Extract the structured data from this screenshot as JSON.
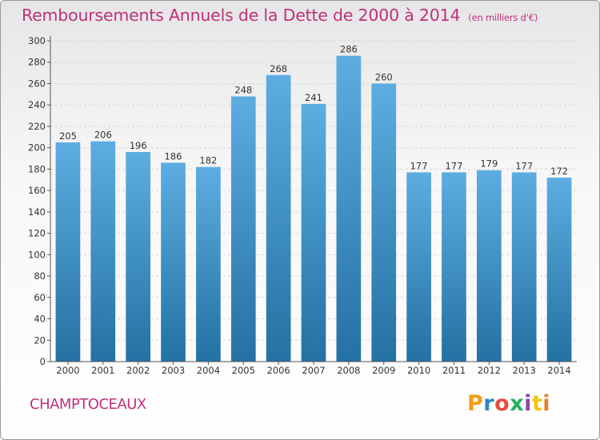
{
  "title": "Remboursements Annuels de la Dette de 2000 à 2014",
  "subtitle": "(en milliers d'€)",
  "commune": "CHAMPTOCEAUX",
  "logo": {
    "text": "Proxiti",
    "colors": [
      "#f39c12",
      "#2e86c1",
      "#e74c3c",
      "#27ae60",
      "#8e44ad",
      "#f1c40f",
      "#e67e22"
    ]
  },
  "colors": {
    "title": "#c0307a",
    "bar_top": "#5dade2",
    "bar_bottom": "#2471a3",
    "grid": "#d5d5d5"
  },
  "chart_data": {
    "type": "bar",
    "categories": [
      "2000",
      "2001",
      "2002",
      "2003",
      "2004",
      "2005",
      "2006",
      "2007",
      "2008",
      "2009",
      "2010",
      "2011",
      "2012",
      "2013",
      "2014"
    ],
    "values": [
      205,
      206,
      196,
      186,
      182,
      248,
      268,
      241,
      286,
      260,
      177,
      177,
      179,
      177,
      172
    ],
    "ylim": [
      0,
      300
    ],
    "yticks": [
      0,
      20,
      40,
      60,
      80,
      100,
      120,
      140,
      160,
      180,
      200,
      220,
      240,
      260,
      280,
      300
    ],
    "grid": true,
    "data_labels": true
  }
}
